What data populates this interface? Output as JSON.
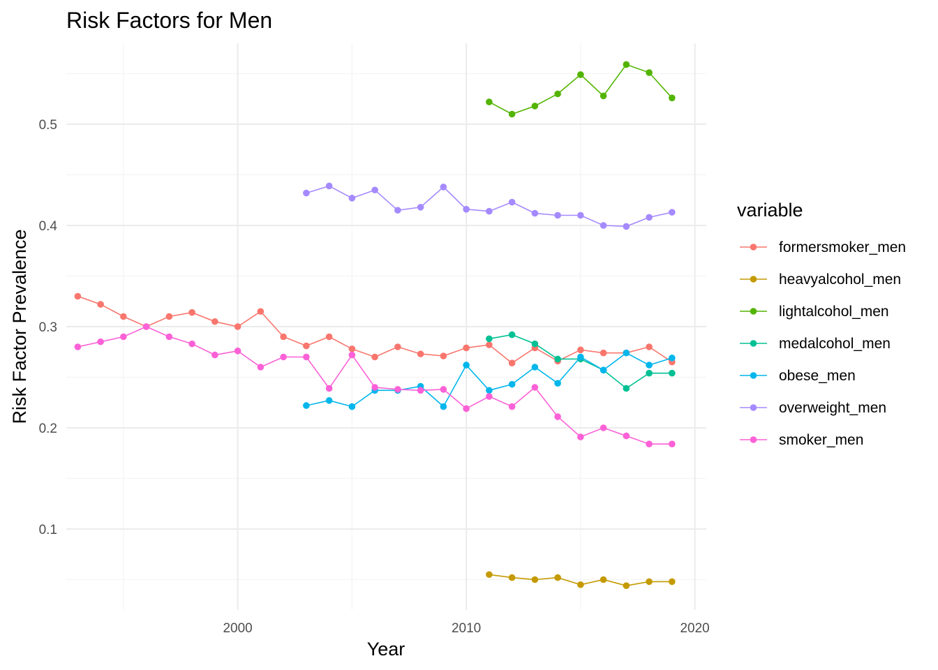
{
  "chart_data": {
    "type": "line",
    "title": "Risk Factors for Men",
    "xlabel": "Year",
    "ylabel": "Risk Factor Prevalence",
    "xlim": [
      1992.5,
      2020.5
    ],
    "ylim": [
      0.02,
      0.58
    ],
    "x_major_ticks": [
      2000,
      2010,
      2020
    ],
    "x_minor_ticks": [
      1995,
      2005,
      2015
    ],
    "y_major_ticks": [
      0.1,
      0.2,
      0.3,
      0.4,
      0.5
    ],
    "y_minor_ticks": [
      0.05,
      0.15,
      0.25,
      0.35,
      0.45,
      0.55
    ],
    "grid": true,
    "legend": {
      "title": "variable",
      "position": "right"
    },
    "series": [
      {
        "name": "formersmoker_men",
        "color": "#F8766D",
        "x": [
          1993,
          1994,
          1995,
          1996,
          1997,
          1998,
          1999,
          2000,
          2001,
          2002,
          2003,
          2004,
          2005,
          2006,
          2007,
          2008,
          2009,
          2010,
          2011,
          2012,
          2013,
          2014,
          2015,
          2016,
          2017,
          2018,
          2019
        ],
        "y": [
          0.33,
          0.322,
          0.31,
          0.3,
          0.31,
          0.314,
          0.305,
          0.3,
          0.315,
          0.29,
          0.281,
          0.29,
          0.278,
          0.27,
          0.28,
          0.273,
          0.271,
          0.279,
          0.282,
          0.264,
          0.279,
          0.266,
          0.277,
          0.274,
          0.274,
          0.28,
          0.265
        ]
      },
      {
        "name": "heavyalcohol_men",
        "color": "#C49A00",
        "x": [
          2011,
          2012,
          2013,
          2014,
          2015,
          2016,
          2017,
          2018,
          2019
        ],
        "y": [
          0.055,
          0.052,
          0.05,
          0.052,
          0.045,
          0.05,
          0.044,
          0.048,
          0.048
        ]
      },
      {
        "name": "lightalcohol_men",
        "color": "#53B400",
        "x": [
          2011,
          2012,
          2013,
          2014,
          2015,
          2016,
          2017,
          2018,
          2019
        ],
        "y": [
          0.522,
          0.51,
          0.518,
          0.53,
          0.549,
          0.528,
          0.559,
          0.551,
          0.526
        ]
      },
      {
        "name": "medalcohol_men",
        "color": "#00C094",
        "x": [
          2011,
          2012,
          2013,
          2014,
          2015,
          2016,
          2017,
          2018,
          2019
        ],
        "y": [
          0.288,
          0.292,
          0.283,
          0.268,
          0.268,
          0.257,
          0.239,
          0.254,
          0.254
        ]
      },
      {
        "name": "obese_men",
        "color": "#00B6EB",
        "x": [
          2003,
          2004,
          2005,
          2006,
          2007,
          2008,
          2009,
          2010,
          2011,
          2012,
          2013,
          2014,
          2015,
          2016,
          2017,
          2018,
          2019
        ],
        "y": [
          0.222,
          0.227,
          0.221,
          0.237,
          0.237,
          0.241,
          0.221,
          0.262,
          0.237,
          0.243,
          0.26,
          0.244,
          0.27,
          0.257,
          0.274,
          0.262,
          0.269
        ]
      },
      {
        "name": "overweight_men",
        "color": "#A58AFF",
        "x": [
          2003,
          2004,
          2005,
          2006,
          2007,
          2008,
          2009,
          2010,
          2011,
          2012,
          2013,
          2014,
          2015,
          2016,
          2017,
          2018,
          2019
        ],
        "y": [
          0.432,
          0.439,
          0.427,
          0.435,
          0.415,
          0.418,
          0.438,
          0.416,
          0.414,
          0.423,
          0.412,
          0.41,
          0.41,
          0.4,
          0.399,
          0.408,
          0.413
        ]
      },
      {
        "name": "smoker_men",
        "color": "#FB61D7",
        "x": [
          1993,
          1994,
          1995,
          1996,
          1997,
          1998,
          1999,
          2000,
          2001,
          2002,
          2003,
          2004,
          2005,
          2006,
          2007,
          2008,
          2009,
          2010,
          2011,
          2012,
          2013,
          2014,
          2015,
          2016,
          2017,
          2018,
          2019
        ],
        "y": [
          0.28,
          0.285,
          0.29,
          0.3,
          0.29,
          0.283,
          0.272,
          0.276,
          0.26,
          0.27,
          0.27,
          0.239,
          0.272,
          0.24,
          0.238,
          0.237,
          0.238,
          0.219,
          0.231,
          0.221,
          0.24,
          0.211,
          0.191,
          0.2,
          0.192,
          0.184,
          0.184
        ]
      }
    ]
  }
}
